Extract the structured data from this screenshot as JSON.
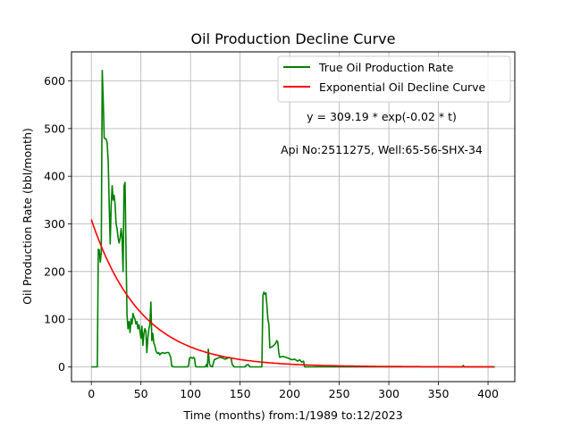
{
  "chart_data": {
    "type": "line",
    "title": "Oil Production Decline Curve",
    "xlabel": "Time (months) from:1/1989 to:12/2023",
    "ylabel": "Oil Production Rate (bbl/month)",
    "xlim": [
      -20,
      427
    ],
    "ylim": [
      -31,
      661
    ],
    "xticks": [
      0,
      50,
      100,
      150,
      200,
      250,
      300,
      350,
      400
    ],
    "yticks": [
      0,
      100,
      200,
      300,
      400,
      500,
      600
    ],
    "grid": true,
    "legend_position": "top-right",
    "annotations": [
      "y = 309.19 * exp(-0.02 * t)",
      "Api No:2511275, Well:65-56-SHX-34"
    ],
    "series": [
      {
        "name": "True Oil Production Rate",
        "color": "#008000",
        "points": [
          [
            0,
            0
          ],
          [
            6,
            0
          ],
          [
            7,
            247
          ],
          [
            8,
            245
          ],
          [
            9,
            220
          ],
          [
            10,
            240
          ],
          [
            11,
            622
          ],
          [
            12,
            560
          ],
          [
            13,
            480
          ],
          [
            15,
            478
          ],
          [
            16,
            470
          ],
          [
            17,
            430
          ],
          [
            18,
            340
          ],
          [
            19,
            258
          ],
          [
            20,
            340
          ],
          [
            21,
            380
          ],
          [
            22,
            350
          ],
          [
            23,
            360
          ],
          [
            24,
            340
          ],
          [
            25,
            300
          ],
          [
            26,
            290
          ],
          [
            27,
            270
          ],
          [
            28,
            260
          ],
          [
            29,
            270
          ],
          [
            30,
            290
          ],
          [
            31,
            270
          ],
          [
            32,
            200
          ],
          [
            33,
            380
          ],
          [
            34,
            387
          ],
          [
            35,
            240
          ],
          [
            36,
            110
          ],
          [
            37,
            80
          ],
          [
            38,
            95
          ],
          [
            39,
            72
          ],
          [
            40,
            100
          ],
          [
            41,
            90
          ],
          [
            42,
            112
          ],
          [
            43,
            105
          ],
          [
            44,
            100
          ],
          [
            45,
            90
          ],
          [
            46,
            95
          ],
          [
            47,
            80
          ],
          [
            48,
            88
          ],
          [
            49,
            75
          ],
          [
            50,
            60
          ],
          [
            51,
            85
          ],
          [
            52,
            45
          ],
          [
            53,
            70
          ],
          [
            54,
            80
          ],
          [
            55,
            75
          ],
          [
            56,
            30
          ],
          [
            57,
            60
          ],
          [
            58,
            80
          ],
          [
            59,
            90
          ],
          [
            60,
            136
          ],
          [
            61,
            55
          ],
          [
            62,
            70
          ],
          [
            63,
            50
          ],
          [
            64,
            45
          ],
          [
            65,
            35
          ],
          [
            66,
            30
          ],
          [
            67,
            28
          ],
          [
            68,
            30
          ],
          [
            69,
            25
          ],
          [
            70,
            28
          ],
          [
            72,
            30
          ],
          [
            74,
            28
          ],
          [
            76,
            30
          ],
          [
            78,
            30
          ],
          [
            79,
            25
          ],
          [
            80,
            20
          ],
          [
            81,
            2
          ],
          [
            83,
            0
          ],
          [
            90,
            0
          ],
          [
            97,
            0
          ],
          [
            98,
            2
          ],
          [
            99,
            18
          ],
          [
            100,
            20
          ],
          [
            102,
            18
          ],
          [
            103,
            20
          ],
          [
            104,
            18
          ],
          [
            105,
            2
          ],
          [
            106,
            0
          ],
          [
            110,
            0
          ],
          [
            115,
            0
          ],
          [
            116,
            5
          ],
          [
            117,
            0
          ],
          [
            118,
            37
          ],
          [
            119,
            8
          ],
          [
            120,
            2
          ],
          [
            122,
            0
          ],
          [
            124,
            15
          ],
          [
            127,
            18
          ],
          [
            130,
            20
          ],
          [
            133,
            18
          ],
          [
            135,
            16
          ],
          [
            137,
            18
          ],
          [
            139,
            20
          ],
          [
            141,
            18
          ],
          [
            142,
            5
          ],
          [
            144,
            0
          ],
          [
            150,
            0
          ],
          [
            155,
            0
          ],
          [
            156,
            3
          ],
          [
            158,
            5
          ],
          [
            160,
            0
          ],
          [
            165,
            0
          ],
          [
            172,
            0
          ],
          [
            173,
            150
          ],
          [
            174,
            157
          ],
          [
            175,
            152
          ],
          [
            176,
            155
          ],
          [
            177,
            130
          ],
          [
            178,
            100
          ],
          [
            179,
            90
          ],
          [
            180,
            40
          ],
          [
            182,
            42
          ],
          [
            184,
            45
          ],
          [
            186,
            50
          ],
          [
            187,
            55
          ],
          [
            188,
            52
          ],
          [
            189,
            30
          ],
          [
            190,
            20
          ],
          [
            193,
            22
          ],
          [
            196,
            20
          ],
          [
            199,
            18
          ],
          [
            202,
            15
          ],
          [
            205,
            16
          ],
          [
            208,
            12
          ],
          [
            210,
            15
          ],
          [
            212,
            10
          ],
          [
            214,
            12
          ],
          [
            215,
            0
          ],
          [
            220,
            0
          ],
          [
            230,
            0
          ],
          [
            240,
            0
          ],
          [
            250,
            0
          ],
          [
            260,
            0
          ],
          [
            280,
            0
          ],
          [
            300,
            0
          ],
          [
            320,
            0
          ],
          [
            340,
            0
          ],
          [
            360,
            0
          ],
          [
            374,
            0
          ],
          [
            375,
            3
          ],
          [
            376,
            0
          ],
          [
            390,
            0
          ],
          [
            407,
            0
          ]
        ]
      },
      {
        "name": "Exponential Oil Decline Curve",
        "color": "#ff0000",
        "a": 309.19,
        "b": 0.02,
        "t_range": [
          0,
          407
        ]
      }
    ]
  }
}
